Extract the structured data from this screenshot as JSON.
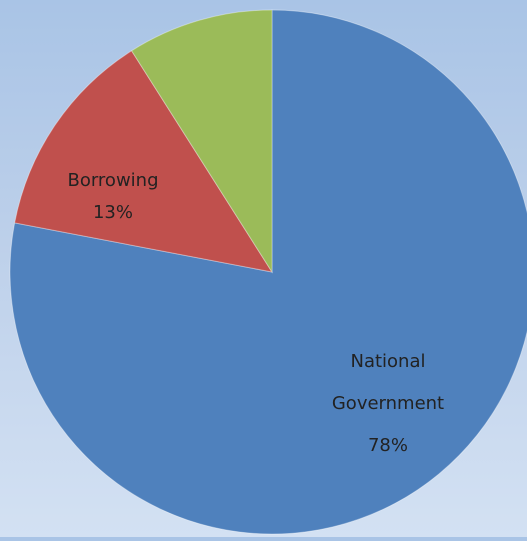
{
  "chart_data": {
    "type": "pie",
    "start_angle_deg": 0,
    "direction": "clockwise",
    "slices": [
      {
        "label": "National Government",
        "value": 78,
        "display": "78%",
        "color": "#4f81bd",
        "show_label": true
      },
      {
        "label": "Borrowing",
        "value": 13,
        "display": "13%",
        "color": "#c0504d",
        "show_label": true
      },
      {
        "label": "",
        "value": 9,
        "display": "",
        "color": "#9bbb59",
        "show_label": false
      }
    ],
    "legend": "none"
  }
}
